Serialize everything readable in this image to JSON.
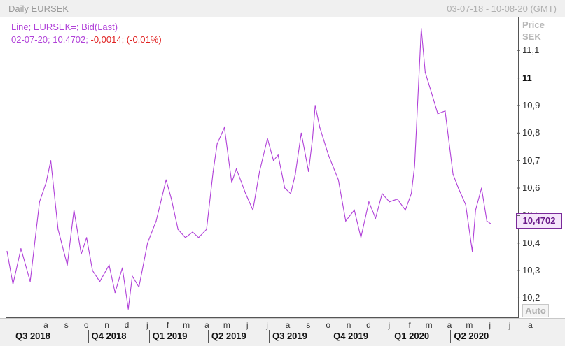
{
  "header": {
    "title": "Daily EURSEK=",
    "range": "03-07-18 - 10-08-20 (GMT)"
  },
  "legend": {
    "line1": "Line; EURSEK=; Bid(Last)",
    "line2_prefix": "02-07-20; 10,4702; ",
    "line2_change": "-0,0014; (-0,01%)"
  },
  "axis": {
    "price_label": "Price",
    "currency_label": "SEK",
    "last_value": "10,4702",
    "auto_label": "Auto",
    "y_ticks": [
      "10,2",
      "10,3",
      "10,4",
      "10,5",
      "10,6",
      "10,7",
      "10,8",
      "10,9",
      "11",
      "11,1"
    ]
  },
  "x_axis": {
    "months": [
      "a",
      "s",
      "o",
      "n",
      "d",
      "j",
      "f",
      "m",
      "a",
      "m",
      "j",
      "j",
      "a",
      "s",
      "o",
      "n",
      "d",
      "j",
      "f",
      "m",
      "a",
      "m",
      "j",
      "j",
      "a"
    ],
    "quarters": [
      "Q3 2018",
      "Q4 2018",
      "Q1 2019",
      "Q2 2019",
      "Q3 2019",
      "Q4 2019",
      "Q1 2020",
      "Q2 2020"
    ]
  },
  "colors": {
    "line": "#b040d8",
    "negative": "#e02020",
    "highlight_box": "#f5e6fb"
  },
  "chart_data": {
    "type": "line",
    "title": "Daily EURSEK=",
    "ylabel": "Price SEK",
    "ylim": [
      10.13,
      11.22
    ],
    "x_range": [
      "2018-07-03",
      "2020-08-10"
    ],
    "series": [
      {
        "name": "EURSEK=",
        "x": [
          "2018-07-03",
          "2018-07-12",
          "2018-07-24",
          "2018-08-07",
          "2018-08-21",
          "2018-08-31",
          "2018-09-07",
          "2018-09-18",
          "2018-10-02",
          "2018-10-12",
          "2018-10-23",
          "2018-10-31",
          "2018-11-09",
          "2018-11-20",
          "2018-12-04",
          "2018-12-13",
          "2018-12-24",
          "2019-01-02",
          "2019-01-08",
          "2019-01-18",
          "2019-01-31",
          "2019-02-13",
          "2019-02-28",
          "2019-03-08",
          "2019-03-18",
          "2019-03-29",
          "2019-04-09",
          "2019-04-18",
          "2019-04-30",
          "2019-05-10",
          "2019-05-16",
          "2019-05-27",
          "2019-06-07",
          "2019-06-14",
          "2019-06-28",
          "2019-07-09",
          "2019-07-19",
          "2019-07-31",
          "2019-08-09",
          "2019-08-16",
          "2019-08-26",
          "2019-09-04",
          "2019-09-11",
          "2019-09-20",
          "2019-10-01",
          "2019-10-07",
          "2019-10-11",
          "2019-10-18",
          "2019-10-31",
          "2019-11-15",
          "2019-11-26",
          "2019-12-09",
          "2019-12-19",
          "2019-12-31",
          "2020-01-10",
          "2020-01-20",
          "2020-01-31",
          "2020-02-12",
          "2020-02-24",
          "2020-03-04",
          "2020-03-09",
          "2020-03-19",
          "2020-03-25",
          "2020-04-03",
          "2020-04-13",
          "2020-04-24",
          "2020-05-06",
          "2020-05-14",
          "2020-05-25",
          "2020-06-04",
          "2020-06-09",
          "2020-06-18",
          "2020-06-26",
          "2020-07-02"
        ],
        "values": [
          10.37,
          10.25,
          10.38,
          10.26,
          10.55,
          10.62,
          10.7,
          10.45,
          10.32,
          10.52,
          10.36,
          10.42,
          10.3,
          10.26,
          10.32,
          10.22,
          10.31,
          10.16,
          10.28,
          10.24,
          10.4,
          10.48,
          10.63,
          10.56,
          10.45,
          10.42,
          10.44,
          10.42,
          10.45,
          10.66,
          10.76,
          10.82,
          10.62,
          10.67,
          10.58,
          10.52,
          10.66,
          10.78,
          10.7,
          10.72,
          10.6,
          10.58,
          10.65,
          10.8,
          10.66,
          10.78,
          10.9,
          10.82,
          10.72,
          10.63,
          10.48,
          10.52,
          10.42,
          10.55,
          10.49,
          10.58,
          10.55,
          10.56,
          10.52,
          10.58,
          10.68,
          11.18,
          11.02,
          10.95,
          10.87,
          10.88,
          10.65,
          10.6,
          10.54,
          10.37,
          10.52,
          10.6,
          10.48,
          10.47
        ]
      }
    ]
  }
}
